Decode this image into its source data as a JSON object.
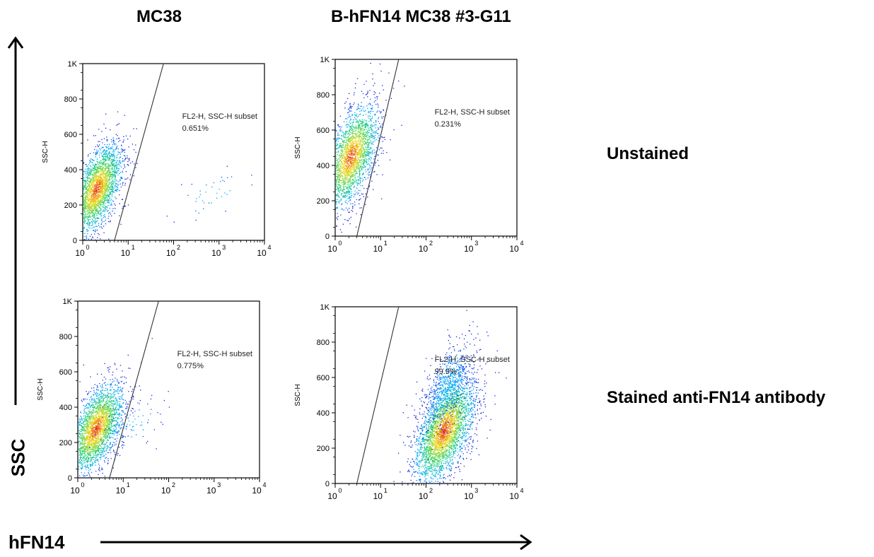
{
  "columns": [
    "MC38",
    "B-hFN14 MC38 #3-G11"
  ],
  "rows": [
    "Unstained",
    "Stained anti-FN14 antibody"
  ],
  "y_axis_title": "SSC",
  "x_axis_title": "hFN14",
  "chart_data": [
    {
      "type": "scatter",
      "id": "mc38-unstained",
      "ylabel": "SSC-H",
      "gate_label": "FL2-H, SSC-H subset",
      "gate_percent": "0.651%",
      "x_ticks": [
        "0",
        "1",
        "2",
        "3",
        "4"
      ],
      "y_ticks": [
        "0",
        "200",
        "400",
        "600",
        "800",
        "1K"
      ],
      "x_scale": "log",
      "xlim": [
        1,
        10000
      ],
      "ylim": [
        0,
        1000
      ],
      "gate_line": [
        [
          5,
          0
        ],
        [
          60,
          1000
        ]
      ],
      "populations": [
        {
          "center": [
            2,
            290
          ],
          "log_spread_x": 0.28,
          "spread_y": 130,
          "points": 2600
        },
        {
          "center": [
            700,
            260
          ],
          "log_spread_x": 0.5,
          "spread_y": 70,
          "points": 40
        }
      ]
    },
    {
      "type": "scatter",
      "id": "hfn14-unstained",
      "ylabel": "SSC-H",
      "gate_label": "FL2-H, SSC-H subset",
      "gate_percent": "0.231%",
      "x_ticks": [
        "0",
        "1",
        "2",
        "3",
        "4"
      ],
      "y_ticks": [
        "0",
        "200",
        "400",
        "600",
        "800",
        "1K"
      ],
      "x_scale": "log",
      "xlim": [
        1,
        10000
      ],
      "ylim": [
        0,
        1000
      ],
      "gate_line": [
        [
          3,
          0
        ],
        [
          25,
          1000
        ]
      ],
      "populations": [
        {
          "center": [
            2.2,
            450
          ],
          "log_spread_x": 0.3,
          "spread_y": 150,
          "points": 2400
        }
      ]
    },
    {
      "type": "scatter",
      "id": "mc38-stained",
      "ylabel": "SSC-H",
      "gate_label": "FL2-H, SSC-H subset",
      "gate_percent": "0.775%",
      "x_ticks": [
        "0",
        "1",
        "2",
        "3",
        "4"
      ],
      "y_ticks": [
        "0",
        "200",
        "400",
        "600",
        "800",
        "1K"
      ],
      "x_scale": "log",
      "xlim": [
        1,
        10000
      ],
      "ylim": [
        0,
        1000
      ],
      "gate_line": [
        [
          5,
          0
        ],
        [
          60,
          1000
        ]
      ],
      "populations": [
        {
          "center": [
            2.5,
            280
          ],
          "log_spread_x": 0.3,
          "spread_y": 130,
          "points": 2600
        },
        {
          "center": [
            15,
            300
          ],
          "log_spread_x": 0.35,
          "spread_y": 80,
          "points": 90
        }
      ]
    },
    {
      "type": "scatter",
      "id": "hfn14-stained",
      "ylabel": "SSC-H",
      "gate_label": "FL2-H, SSC-H subset",
      "gate_percent": "99.9%",
      "x_ticks": [
        "0",
        "1",
        "2",
        "3",
        "4"
      ],
      "y_ticks": [
        "0",
        "200",
        "400",
        "600",
        "800",
        "1K"
      ],
      "x_scale": "log",
      "xlim": [
        1,
        10000
      ],
      "ylim": [
        0,
        1000
      ],
      "gate_line": [
        [
          3,
          0
        ],
        [
          25,
          1000
        ]
      ],
      "populations": [
        {
          "center": [
            250,
            300
          ],
          "log_spread_x": 0.33,
          "spread_y": 150,
          "points": 3200
        },
        {
          "center": [
            300,
            560
          ],
          "log_spread_x": 0.28,
          "spread_y": 130,
          "points": 700
        }
      ]
    }
  ]
}
